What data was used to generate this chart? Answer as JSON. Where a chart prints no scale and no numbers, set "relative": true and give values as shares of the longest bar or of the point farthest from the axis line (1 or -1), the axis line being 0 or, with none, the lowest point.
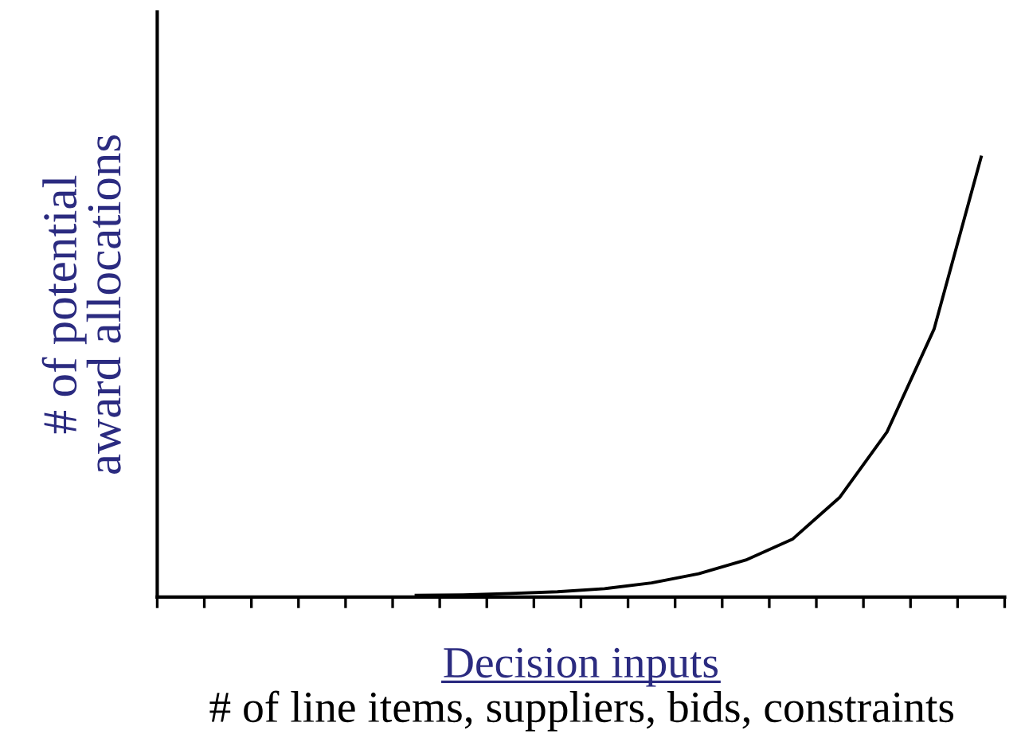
{
  "chart_data": {
    "type": "line",
    "relative": true,
    "xlabel": "Decision inputs",
    "ylabel": "# of potential\naward allocations",
    "annotations": [
      "# of line items, suppliers, bids, constraints"
    ],
    "categories": [
      null,
      null,
      null,
      null,
      null,
      null,
      null,
      null,
      null,
      null,
      null,
      null,
      null,
      null,
      null,
      null,
      null,
      null
    ],
    "series": [
      {
        "color": "#000000",
        "values": [
          null,
          null,
          null,
          null,
          null,
          0.004,
          0.005,
          0.008,
          0.012,
          0.019,
          0.032,
          0.053,
          0.084,
          0.132,
          0.227,
          0.375,
          0.609,
          1.0
        ]
      }
    ]
  }
}
